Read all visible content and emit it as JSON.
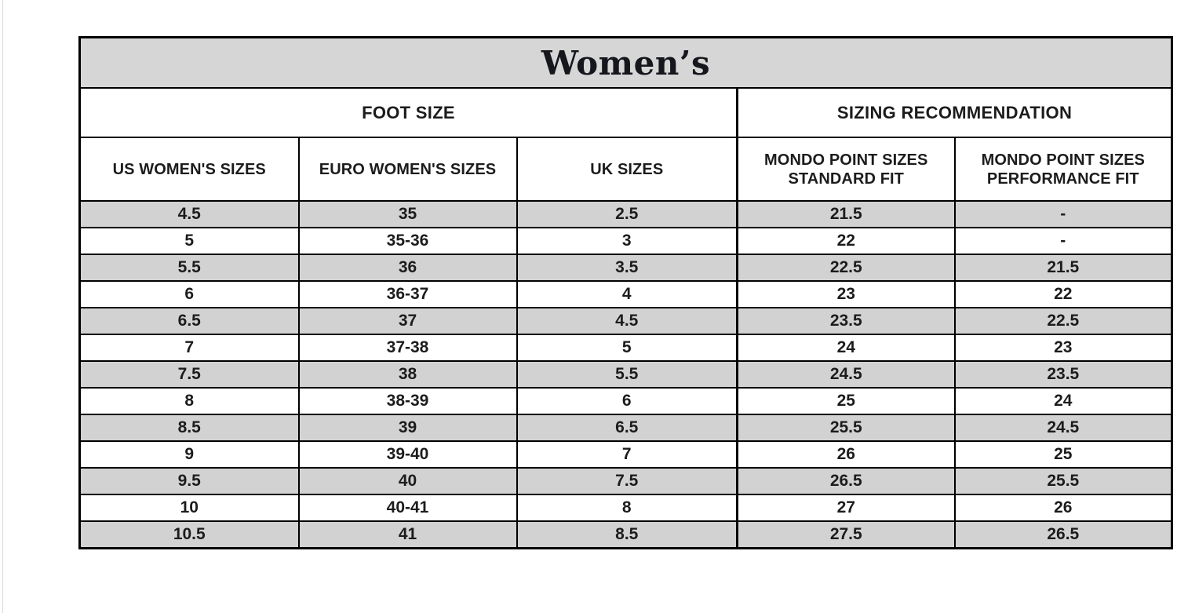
{
  "page": {
    "background": "#ffffff",
    "left_edge_line_color": "#d9d9d9"
  },
  "table": {
    "title": "Women’s",
    "group_headers": [
      {
        "label": "FOOT SIZE",
        "span": 3
      },
      {
        "label": "SIZING RECOMMENDATION",
        "span": 2
      }
    ],
    "column_headers": [
      "US WOMEN'S SIZES",
      "EURO WOMEN'S SIZES",
      "UK SIZES",
      "MONDO POINT SIZES STANDARD FIT",
      "MONDO POINT SIZES PERFORMANCE FIT"
    ],
    "rows": [
      [
        "4.5",
        "35",
        "2.5",
        "21.5",
        "-"
      ],
      [
        "5",
        "35-36",
        "3",
        "22",
        "-"
      ],
      [
        "5.5",
        "36",
        "3.5",
        "22.5",
        "21.5"
      ],
      [
        "6",
        "36-37",
        "4",
        "23",
        "22"
      ],
      [
        "6.5",
        "37",
        "4.5",
        "23.5",
        "22.5"
      ],
      [
        "7",
        "37-38",
        "5",
        "24",
        "23"
      ],
      [
        "7.5",
        "38",
        "5.5",
        "24.5",
        "23.5"
      ],
      [
        "8",
        "38-39",
        "6",
        "25",
        "24"
      ],
      [
        "8.5",
        "39",
        "6.5",
        "25.5",
        "24.5"
      ],
      [
        "9",
        "39-40",
        "7",
        "26",
        "25"
      ],
      [
        "9.5",
        "40",
        "7.5",
        "26.5",
        "25.5"
      ],
      [
        "10",
        "40-41",
        "8",
        "27",
        "26"
      ],
      [
        "10.5",
        "41",
        "8.5",
        "27.5",
        "26.5"
      ]
    ],
    "colors": {
      "title_bg": "#d6d6d6",
      "alt_row_bg": "#d2d2d2",
      "row_bg": "#ffffff",
      "border": "#000000",
      "text": "#1c1c1c"
    }
  },
  "chart_data": {
    "type": "table",
    "title": "Women’s",
    "column_groups": [
      {
        "label": "FOOT SIZE",
        "columns": [
          "US WOMEN'S SIZES",
          "EURO WOMEN'S SIZES",
          "UK SIZES"
        ]
      },
      {
        "label": "SIZING RECOMMENDATION",
        "columns": [
          "MONDO POINT SIZES STANDARD FIT",
          "MONDO POINT SIZES PERFORMANCE FIT"
        ]
      }
    ],
    "columns": [
      "US WOMEN'S SIZES",
      "EURO WOMEN'S SIZES",
      "UK SIZES",
      "MONDO POINT SIZES STANDARD FIT",
      "MONDO POINT SIZES PERFORMANCE FIT"
    ],
    "rows": [
      [
        "4.5",
        "35",
        "2.5",
        "21.5",
        "-"
      ],
      [
        "5",
        "35-36",
        "3",
        "22",
        "-"
      ],
      [
        "5.5",
        "36",
        "3.5",
        "22.5",
        "21.5"
      ],
      [
        "6",
        "36-37",
        "4",
        "23",
        "22"
      ],
      [
        "6.5",
        "37",
        "4.5",
        "23.5",
        "22.5"
      ],
      [
        "7",
        "37-38",
        "5",
        "24",
        "23"
      ],
      [
        "7.5",
        "38",
        "5.5",
        "24.5",
        "23.5"
      ],
      [
        "8",
        "38-39",
        "6",
        "25",
        "24"
      ],
      [
        "8.5",
        "39",
        "6.5",
        "25.5",
        "24.5"
      ],
      [
        "9",
        "39-40",
        "7",
        "26",
        "25"
      ],
      [
        "9.5",
        "40",
        "7.5",
        "26.5",
        "25.5"
      ],
      [
        "10",
        "40-41",
        "8",
        "27",
        "26"
      ],
      [
        "10.5",
        "41",
        "8.5",
        "27.5",
        "26.5"
      ]
    ]
  }
}
